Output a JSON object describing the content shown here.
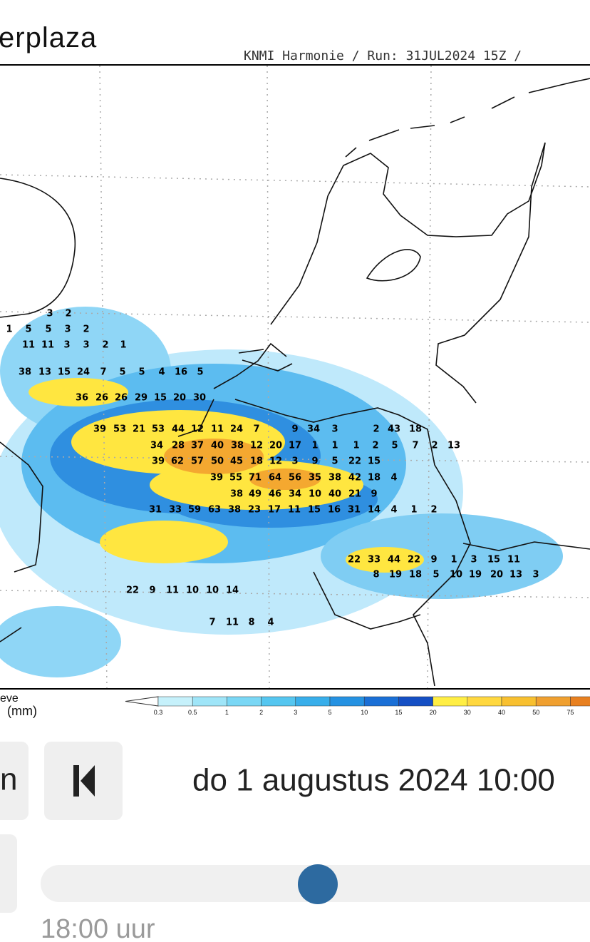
{
  "header": {
    "brand": "erplaza",
    "model_run": "KNMI Harmonie / Run: 31JUL2024 15Z /"
  },
  "legend": {
    "title_line1": "eve",
    "title_line2": "(mm)",
    "ticks": [
      "0.3",
      "0.5",
      "1",
      "2",
      "3",
      "5",
      "10",
      "15",
      "20",
      "30",
      "40",
      "50",
      "75"
    ]
  },
  "map": {
    "labels": [
      [
        "3",
        "2"
      ],
      [
        "1",
        "5",
        "5",
        "3",
        "2"
      ],
      [
        "11",
        "11",
        "3",
        "3",
        "2",
        "1"
      ],
      [
        "38",
        "13",
        "15",
        "24",
        "7",
        "5",
        "5",
        "4",
        "16",
        "5"
      ],
      [
        "36",
        "26",
        "26",
        "29",
        "15",
        "20",
        "30"
      ],
      [
        "39",
        "53",
        "21",
        "53",
        "44",
        "12",
        "11",
        "24",
        "7",
        "9",
        "34",
        "3",
        "2",
        "43",
        "18"
      ],
      [
        "34",
        "28",
        "37",
        "40",
        "38",
        "12",
        "20",
        "17",
        "1",
        "1",
        "1",
        "2",
        "5",
        "7",
        "2",
        "13"
      ],
      [
        "39",
        "62",
        "57",
        "50",
        "45",
        "18",
        "12",
        "3",
        "9",
        "5",
        "22",
        "15"
      ],
      [
        "39",
        "55",
        "71",
        "64",
        "56",
        "35",
        "38",
        "42",
        "18",
        "4"
      ],
      [
        "38",
        "49",
        "46",
        "34",
        "10",
        "40",
        "21",
        "9"
      ],
      [
        "31",
        "33",
        "59",
        "63",
        "38",
        "23",
        "17",
        "11",
        "15",
        "16",
        "31",
        "14",
        "4",
        "1",
        "2"
      ],
      [
        "22",
        "33",
        "44",
        "22",
        "9",
        "1",
        "3",
        "15",
        "11"
      ],
      [
        "8",
        "19",
        "18",
        "5",
        "10",
        "19",
        "20",
        "13",
        "3"
      ],
      [
        "22",
        "9",
        "11",
        "10",
        "10",
        "14"
      ],
      [
        "7",
        "11",
        "8",
        "4"
      ]
    ]
  },
  "controls": {
    "prev_button_text": "n",
    "datetime": "do 1 augustus 2024 10:00",
    "time_label": "18:00 uur"
  }
}
